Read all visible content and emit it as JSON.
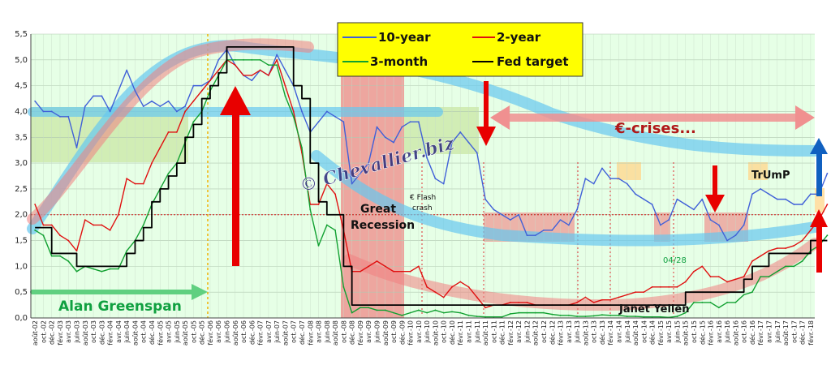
{
  "chart_data": {
    "type": "line",
    "title": "",
    "xlabel": "",
    "ylabel": "",
    "ylim": [
      0,
      5.5
    ],
    "yticks": [
      "0,0",
      "0,5",
      "1,0",
      "1,5",
      "2,0",
      "2,5",
      "3,0",
      "3,5",
      "4,0",
      "4,5",
      "5,0",
      "5,5"
    ],
    "grid": true,
    "legend_position": "top-center",
    "colors": {
      "ten_year": "#4060d8",
      "two_year": "#e01010",
      "three_month": "#10a030",
      "fed_target": "#000000",
      "plot_bg": "#e6ffe6",
      "legend_bg": "#ffff00",
      "highlight_blue": "#66c8f0",
      "highlight_red": "#f08080"
    },
    "x_ticks": [
      "août-02",
      "oct.-02",
      "déc.-02",
      "févr.-03",
      "avr.-03",
      "juin-03",
      "août-03",
      "oct.-03",
      "déc.-03",
      "févr.-04",
      "avr.-04",
      "juin-04",
      "août-04",
      "oct.-04",
      "déc.-04",
      "févr.-05",
      "avr.-05",
      "juin-05",
      "août-05",
      "oct.-05",
      "déc.-05",
      "févr.-06",
      "avr.-06",
      "juin-06",
      "août-06",
      "oct.-06",
      "déc.-06",
      "févr.-07",
      "avr.-07",
      "juin-07",
      "août-07",
      "oct.-07",
      "déc.-07",
      "févr.-08",
      "avr.-08",
      "juin-08",
      "août-08",
      "oct.-08",
      "déc.-08",
      "févr.-09",
      "avr.-09",
      "juin-09",
      "août-09",
      "oct.-09",
      "déc.-09",
      "févr.-10",
      "avr.-10",
      "juin-10",
      "août-10",
      "oct.-10",
      "déc.-10",
      "févr.-11",
      "avr.-11",
      "juin-11",
      "août-11",
      "oct.-11",
      "déc.-11",
      "févr.-12",
      "avr.-12",
      "juin-12",
      "août-12",
      "oct.-12",
      "déc.-12",
      "févr.-13",
      "avr.-13",
      "juin-13",
      "août-13",
      "oct.-13",
      "déc.-13",
      "févr.-14",
      "avr.-14",
      "juin-14",
      "août-14",
      "oct.-14",
      "déc.-14",
      "févr.-15",
      "avr.-15",
      "juin-15",
      "août-15",
      "oct.-15",
      "déc.-15",
      "févr.-16",
      "avr.-16",
      "juin-16",
      "août-16",
      "oct.-16",
      "déc.-16",
      "févr.-17",
      "avr.-17",
      "juin-17",
      "août-17",
      "oct.-17",
      "déc.-17",
      "févr.-18"
    ],
    "series": [
      {
        "name": "10-year",
        "key": "ten_year",
        "values": [
          4.2,
          4.0,
          4.0,
          3.9,
          3.9,
          3.3,
          4.1,
          4.3,
          4.3,
          4.0,
          4.4,
          4.8,
          4.4,
          4.1,
          4.2,
          4.1,
          4.2,
          4.0,
          4.1,
          4.5,
          4.5,
          4.6,
          5.0,
          5.2,
          4.9,
          4.7,
          4.6,
          4.8,
          4.7,
          5.1,
          4.8,
          4.5,
          4.0,
          3.6,
          3.8,
          4.0,
          3.9,
          3.8,
          2.6,
          2.8,
          3.0,
          3.7,
          3.5,
          3.4,
          3.7,
          3.8,
          3.8,
          3.1,
          2.7,
          2.6,
          3.4,
          3.6,
          3.4,
          3.2,
          2.3,
          2.1,
          2.0,
          1.9,
          2.0,
          1.6,
          1.6,
          1.7,
          1.7,
          1.9,
          1.8,
          2.1,
          2.7,
          2.6,
          2.9,
          2.7,
          2.7,
          2.6,
          2.4,
          2.3,
          2.2,
          1.8,
          1.9,
          2.3,
          2.2,
          2.1,
          2.3,
          1.9,
          1.8,
          1.5,
          1.6,
          1.8,
          2.4,
          2.5,
          2.4,
          2.3,
          2.3,
          2.2,
          2.2,
          2.4,
          2.4,
          2.8
        ]
      },
      {
        "name": "2-year",
        "key": "two_year",
        "values": [
          2.2,
          1.8,
          1.8,
          1.6,
          1.5,
          1.3,
          1.9,
          1.8,
          1.8,
          1.7,
          2.0,
          2.7,
          2.6,
          2.6,
          3.0,
          3.3,
          3.6,
          3.6,
          4.0,
          4.2,
          4.4,
          4.6,
          4.8,
          5.0,
          4.9,
          4.7,
          4.7,
          4.8,
          4.7,
          5.0,
          4.5,
          4.0,
          3.2,
          2.2,
          2.2,
          2.6,
          2.4,
          1.7,
          0.9,
          0.9,
          1.0,
          1.1,
          1.0,
          0.9,
          0.9,
          0.9,
          1.0,
          0.6,
          0.5,
          0.4,
          0.6,
          0.7,
          0.6,
          0.4,
          0.2,
          0.25,
          0.25,
          0.3,
          0.3,
          0.3,
          0.25,
          0.25,
          0.25,
          0.25,
          0.25,
          0.3,
          0.4,
          0.3,
          0.35,
          0.35,
          0.4,
          0.45,
          0.5,
          0.5,
          0.6,
          0.6,
          0.6,
          0.6,
          0.7,
          0.9,
          1.0,
          0.8,
          0.8,
          0.7,
          0.75,
          0.8,
          1.1,
          1.2,
          1.3,
          1.35,
          1.35,
          1.4,
          1.5,
          1.7,
          1.9,
          2.2
        ]
      },
      {
        "name": "3-month",
        "key": "three_month",
        "values": [
          1.7,
          1.6,
          1.2,
          1.2,
          1.1,
          0.9,
          1.0,
          0.95,
          0.9,
          0.95,
          0.95,
          1.3,
          1.5,
          1.8,
          2.2,
          2.5,
          2.8,
          3.0,
          3.4,
          3.8,
          4.0,
          4.4,
          4.7,
          5.0,
          5.0,
          5.0,
          5.0,
          5.0,
          4.9,
          4.9,
          4.3,
          3.9,
          3.3,
          2.1,
          1.4,
          1.8,
          1.7,
          0.6,
          0.1,
          0.2,
          0.2,
          0.15,
          0.15,
          0.1,
          0.05,
          0.1,
          0.15,
          0.1,
          0.15,
          0.1,
          0.12,
          0.1,
          0.05,
          0.03,
          0.02,
          0.02,
          0.02,
          0.08,
          0.1,
          0.1,
          0.1,
          0.1,
          0.07,
          0.05,
          0.05,
          0.03,
          0.03,
          0.04,
          0.06,
          0.05,
          0.05,
          0.03,
          0.03,
          0.02,
          0.02,
          0.02,
          0.01,
          0.03,
          0.1,
          0.3,
          0.3,
          0.3,
          0.2,
          0.3,
          0.3,
          0.45,
          0.5,
          0.8,
          0.8,
          0.9,
          1.0,
          1.0,
          1.1,
          1.3,
          1.4,
          1.6
        ]
      },
      {
        "name": "Fed target",
        "key": "fed_target",
        "values": [
          1.75,
          1.75,
          1.25,
          1.25,
          1.25,
          1.0,
          1.0,
          1.0,
          1.0,
          1.0,
          1.0,
          1.25,
          1.5,
          1.75,
          2.25,
          2.5,
          2.75,
          3.0,
          3.5,
          3.75,
          4.25,
          4.5,
          4.75,
          5.25,
          5.25,
          5.25,
          5.25,
          5.25,
          5.25,
          5.25,
          5.25,
          4.5,
          4.25,
          3.0,
          2.25,
          2.0,
          2.0,
          1.0,
          0.25,
          0.25,
          0.25,
          0.25,
          0.25,
          0.25,
          0.25,
          0.25,
          0.25,
          0.25,
          0.25,
          0.25,
          0.25,
          0.25,
          0.25,
          0.25,
          0.25,
          0.25,
          0.25,
          0.25,
          0.25,
          0.25,
          0.25,
          0.25,
          0.25,
          0.25,
          0.25,
          0.25,
          0.25,
          0.25,
          0.25,
          0.25,
          0.25,
          0.25,
          0.25,
          0.25,
          0.25,
          0.25,
          0.25,
          0.25,
          0.5,
          0.5,
          0.5,
          0.5,
          0.5,
          0.5,
          0.5,
          0.75,
          1.0,
          1.0,
          1.25,
          1.25,
          1.25,
          1.25,
          1.25,
          1.5,
          1.5,
          1.5
        ]
      }
    ],
    "legend": [
      "10-year",
      "2-year",
      "3-month",
      "Fed target"
    ],
    "reference_line": {
      "y": 2.0,
      "color": "#d01010"
    },
    "annotations": {
      "alan_greenspan": "Alan Greenspan",
      "great_recession_1": "Great",
      "great_recession_2": "Recession",
      "flash_crash_1": "€ Flash",
      "flash_crash_2": "crash",
      "euro_crises": "€-crises...",
      "trump": "TrUmP",
      "janet_yellen": "Janet Yellen",
      "date_label": "04/28",
      "watermark": "© Chevallier.biz"
    }
  }
}
